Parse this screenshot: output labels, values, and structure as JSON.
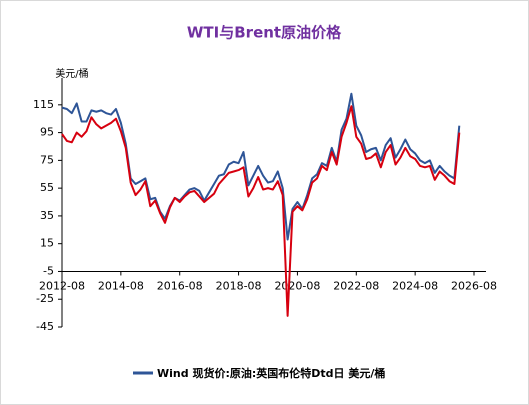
{
  "chart_data": {
    "type": "line",
    "title": "WTI与Brent原油价格",
    "y_label": "美元/桶",
    "x": [
      "2012-08",
      "2012-10",
      "2012-12",
      "2013-02",
      "2013-04",
      "2013-06",
      "2013-08",
      "2013-10",
      "2013-12",
      "2014-02",
      "2014-04",
      "2014-06",
      "2014-08",
      "2014-10",
      "2014-12",
      "2015-02",
      "2015-04",
      "2015-06",
      "2015-08",
      "2015-10",
      "2015-12",
      "2016-02",
      "2016-04",
      "2016-06",
      "2016-08",
      "2016-10",
      "2016-12",
      "2017-02",
      "2017-04",
      "2017-06",
      "2017-08",
      "2017-10",
      "2017-12",
      "2018-02",
      "2018-04",
      "2018-06",
      "2018-08",
      "2018-10",
      "2018-12",
      "2019-02",
      "2019-04",
      "2019-06",
      "2019-08",
      "2019-10",
      "2019-12",
      "2020-02",
      "2020-04",
      "2020-06",
      "2020-08",
      "2020-10",
      "2020-12",
      "2021-02",
      "2021-04",
      "2021-06",
      "2021-08",
      "2021-10",
      "2021-12",
      "2022-02",
      "2022-04",
      "2022-06",
      "2022-08",
      "2022-10",
      "2022-12",
      "2023-02",
      "2023-04",
      "2023-06",
      "2023-08",
      "2023-10",
      "2023-12",
      "2024-02",
      "2024-04",
      "2024-06",
      "2024-08",
      "2024-10",
      "2024-12",
      "2025-02",
      "2025-04",
      "2025-06",
      "2025-08",
      "2025-10",
      "2025-12",
      "2026-02"
    ],
    "series": [
      {
        "name": "Wind 现货价:原油:英国布伦特Dtd日 美元/桶",
        "color": "#2e5597",
        "values": [
          113,
          112,
          109,
          116,
          103,
          103,
          111,
          110,
          111,
          109,
          108,
          112,
          102,
          87,
          62,
          58,
          60,
          62,
          47,
          48,
          38,
          33,
          42,
          48,
          46,
          50,
          54,
          55,
          53,
          46,
          52,
          58,
          64,
          65,
          72,
          74,
          73,
          81,
          57,
          64,
          71,
          64,
          59,
          60,
          67,
          55,
          18,
          40,
          45,
          40,
          50,
          62,
          65,
          73,
          71,
          84,
          74,
          97,
          105,
          123,
          100,
          93,
          81,
          83,
          84,
          75,
          86,
          91,
          77,
          83,
          90,
          83,
          80,
          75,
          73,
          75,
          66,
          71,
          67,
          64,
          62,
          100
        ]
      },
      {
        "color": "#d7000f",
        "values": [
          94,
          89,
          88,
          95,
          92,
          96,
          106,
          101,
          98,
          100,
          102,
          105,
          96,
          84,
          59,
          50,
          54,
          60,
          42,
          46,
          37,
          30,
          41,
          48,
          45,
          49,
          52,
          53,
          49,
          45,
          48,
          51,
          58,
          62,
          66,
          67,
          68,
          70,
          49,
          55,
          63,
          54,
          55,
          54,
          60,
          50,
          -37,
          38,
          42,
          39,
          47,
          59,
          62,
          71,
          68,
          81,
          72,
          92,
          102,
          114,
          92,
          87,
          76,
          77,
          80,
          70,
          81,
          86,
          72,
          77,
          84,
          78,
          76,
          71,
          70,
          71,
          61,
          67,
          64,
          60,
          58,
          95
        ]
      }
    ],
    "xlim": [
      "2012-08",
      "2026-08"
    ],
    "xticks": [
      "2012-08",
      "2014-08",
      "2016-08",
      "2018-08",
      "2020-08",
      "2022-08",
      "2024-08",
      "2026-08"
    ],
    "ylim": [
      -45,
      130
    ],
    "yticks": [
      -45,
      -25,
      -5,
      15,
      35,
      55,
      75,
      95,
      115
    ],
    "x_axis_crosses": -5,
    "grid": false
  }
}
